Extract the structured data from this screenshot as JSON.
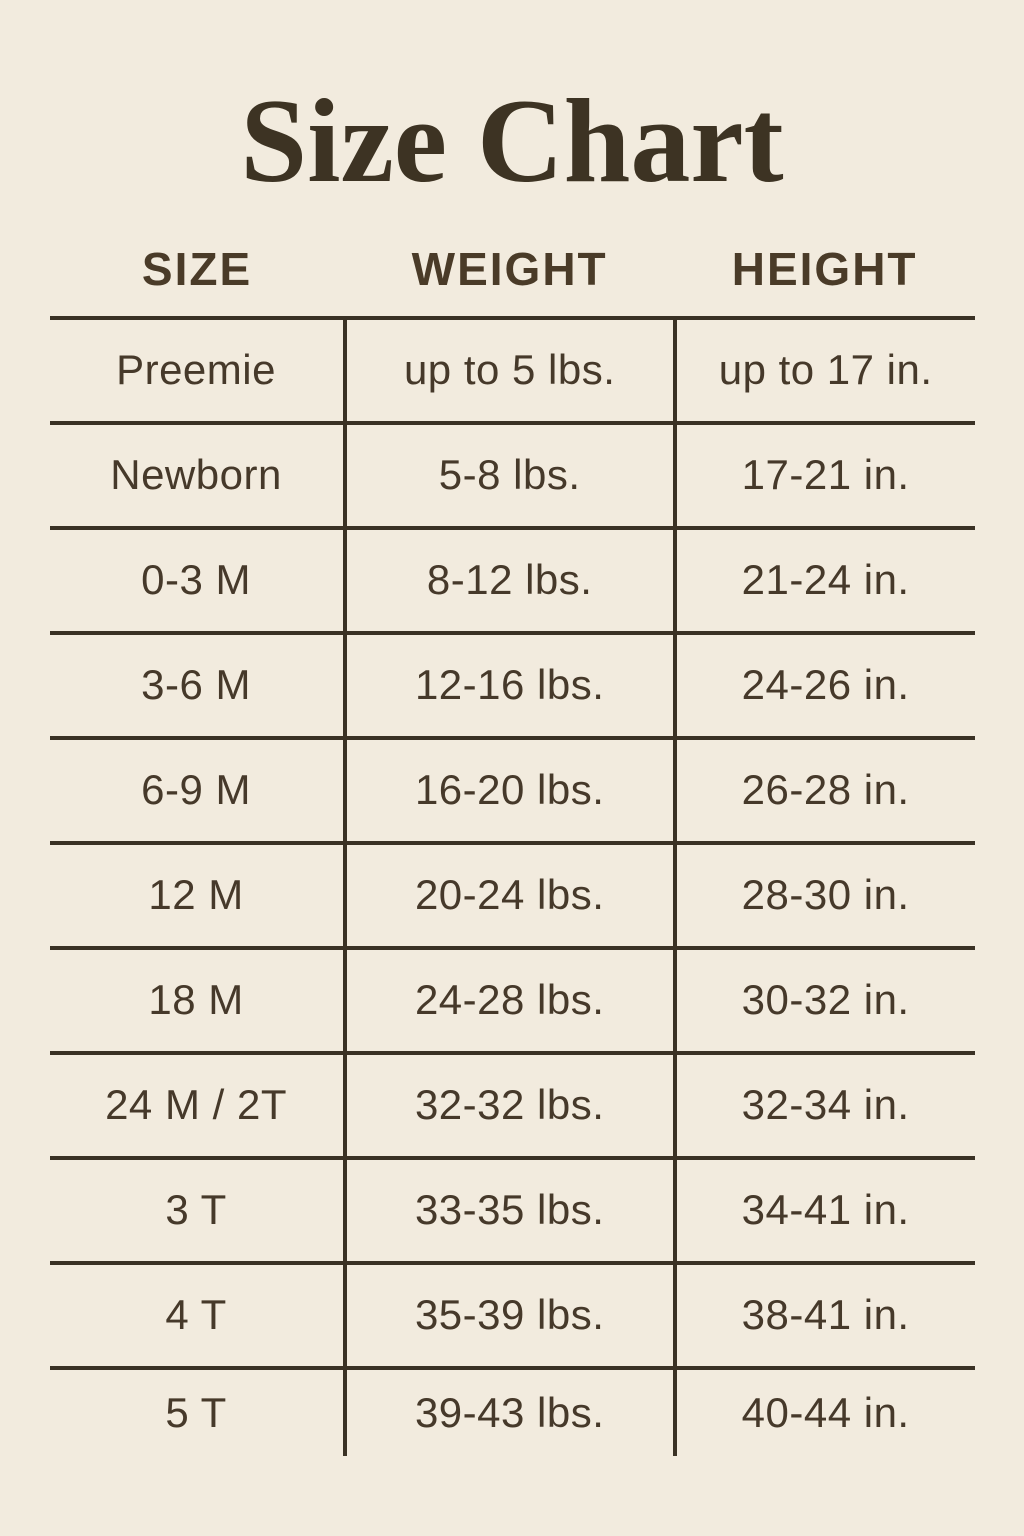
{
  "colors": {
    "background": "#f2ebde",
    "title_text": "#3d3323",
    "body_text": "#46392a",
    "table_lines": "#3a3124"
  },
  "title": "Size Chart",
  "chart_data": {
    "type": "table",
    "title": "Size Chart",
    "columns": [
      "SIZE",
      "WEIGHT",
      "HEIGHT"
    ],
    "rows": [
      [
        "Preemie",
        "up to 5 lbs.",
        "up to 17 in."
      ],
      [
        "Newborn",
        "5-8 lbs.",
        "17-21 in."
      ],
      [
        "0-3 M",
        "8-12 lbs.",
        "21-24 in."
      ],
      [
        "3-6 M",
        "12-16 lbs.",
        "24-26 in."
      ],
      [
        "6-9 M",
        "16-20 lbs.",
        "26-28 in."
      ],
      [
        "12 M",
        "20-24 lbs.",
        "28-30 in."
      ],
      [
        "18 M",
        "24-28 lbs.",
        "30-32 in."
      ],
      [
        "24 M / 2T",
        "32-32 lbs.",
        "32-34 in."
      ],
      [
        "3 T",
        "33-35 lbs.",
        "34-41 in."
      ],
      [
        "4 T",
        "35-39 lbs.",
        "38-41 in."
      ],
      [
        "5 T",
        "39-43 lbs.",
        "40-44 in."
      ]
    ],
    "layout": {
      "grid": "horizontal row separators and vertical column separators in body only",
      "header_vertical_separators": false,
      "bottom_border": false
    }
  }
}
